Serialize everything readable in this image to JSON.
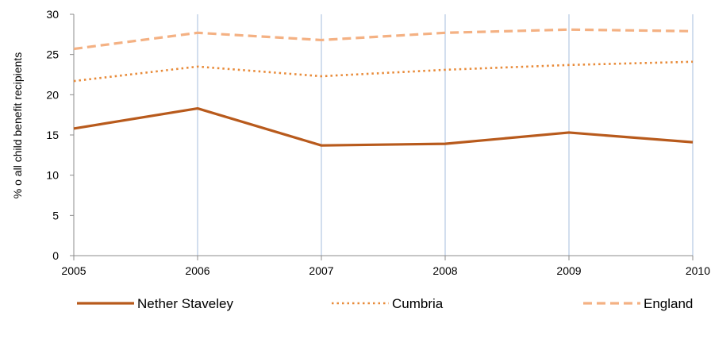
{
  "chart_data": {
    "type": "line",
    "title": "",
    "xlabel": "",
    "ylabel": "% o all child benefit recipients",
    "x": [
      "2005",
      "2006",
      "2007",
      "2008",
      "2009",
      "2010"
    ],
    "ylim": [
      0,
      30
    ],
    "yticks": [
      "0",
      "5",
      "10",
      "15",
      "20",
      "25",
      "30"
    ],
    "grid": "vertical",
    "legend_position": "bottom",
    "series": [
      {
        "name": "Nether Staveley",
        "values": [
          15.8,
          18.3,
          13.7,
          13.9,
          15.3,
          14.1
        ],
        "color": "#b85a1c",
        "style": "solid"
      },
      {
        "name": "Cumbria",
        "values": [
          21.7,
          23.5,
          22.3,
          23.1,
          23.7,
          24.1
        ],
        "color": "#e88a38",
        "style": "dotted"
      },
      {
        "name": "England",
        "values": [
          25.7,
          27.7,
          26.8,
          27.7,
          28.1,
          27.9
        ],
        "color": "#f4b183",
        "style": "dashed"
      }
    ]
  }
}
